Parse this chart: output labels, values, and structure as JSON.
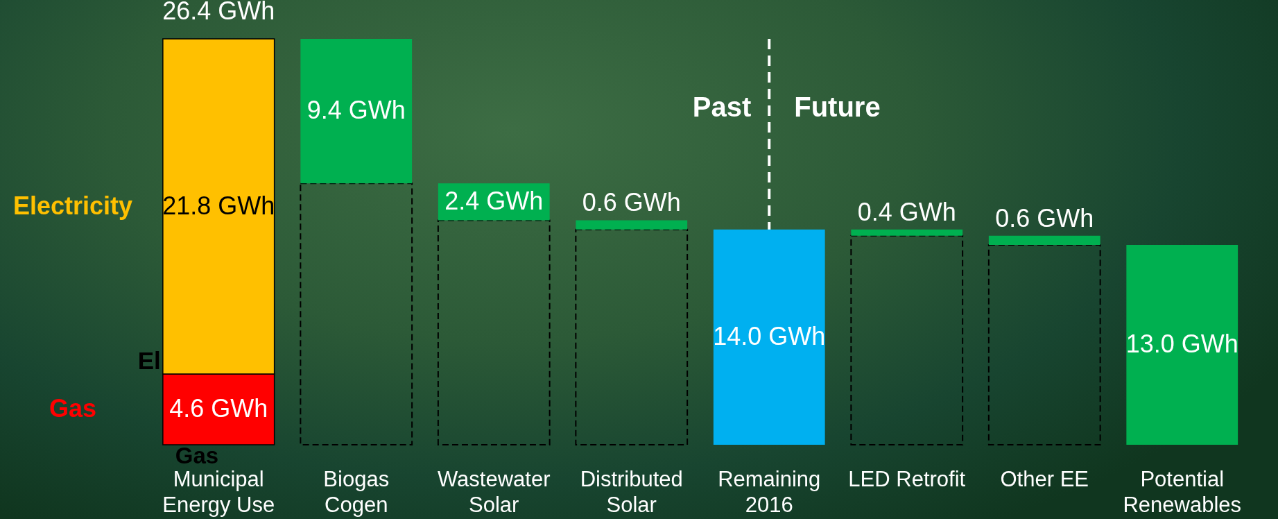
{
  "chart_data": {
    "type": "bar",
    "stacked": true,
    "categories": [
      "Municipal Energy Use",
      "Biogas Cogen",
      "Wastewater Solar",
      "Distributed Solar",
      "Remaining 2016",
      "LED Retrofit",
      "Other EE",
      "Potential Renewables"
    ],
    "series": [
      {
        "name": "Gas",
        "color": "#ff0000",
        "values": [
          4.6,
          null,
          null,
          null,
          null,
          null,
          null,
          null
        ],
        "value_labels": [
          "4.6 GWh",
          null,
          null,
          null,
          null,
          null,
          null,
          null
        ]
      },
      {
        "name": "Electricity",
        "color": "#ffc000",
        "values": [
          21.8,
          null,
          null,
          null,
          null,
          null,
          null,
          null
        ],
        "value_labels": [
          "21.8 GWh",
          null,
          null,
          null,
          null,
          null,
          null,
          null
        ]
      },
      {
        "color": "#000000",
        "line_style": "dashed",
        "values": [
          null,
          17.0,
          14.6,
          14.0,
          null,
          13.6,
          13.0,
          null
        ]
      },
      {
        "colors": [
          null,
          "#00b050",
          "#00b050",
          "#00b050",
          "#00b0f0",
          "#00b050",
          "#00b050",
          "#00b050"
        ],
        "values": [
          null,
          9.4,
          2.4,
          0.6,
          14.0,
          0.4,
          0.6,
          13.0
        ],
        "value_labels": [
          null,
          "9.4 GWh",
          "2.4 GWh",
          "0.6 GWh",
          "14.0 GWh",
          "0.4 GWh",
          "0.6 GWh",
          "13.0 GWh"
        ]
      }
    ],
    "totals": [
      "26.4 GWh",
      null,
      null,
      null,
      null,
      null,
      null,
      null
    ],
    "ylim": [
      0,
      26.4
    ],
    "tick_labels": "x",
    "ref_lines": [
      {
        "axis": "x",
        "value": "Remaining 2016",
        "color": "#ffffff",
        "line_style": "dashed"
      }
    ],
    "annotations": [
      {
        "text": "Past",
        "x": "Remaining 2016",
        "y": 21.9
      },
      {
        "text": "Future",
        "x": "Remaining 2016",
        "y": 21.9
      },
      {
        "text": "El",
        "x": "Municipal Energy Use",
        "y": 4.6
      },
      {
        "text": "Gas",
        "x": "Municipal Energy Use",
        "y": 0
      }
    ]
  }
}
